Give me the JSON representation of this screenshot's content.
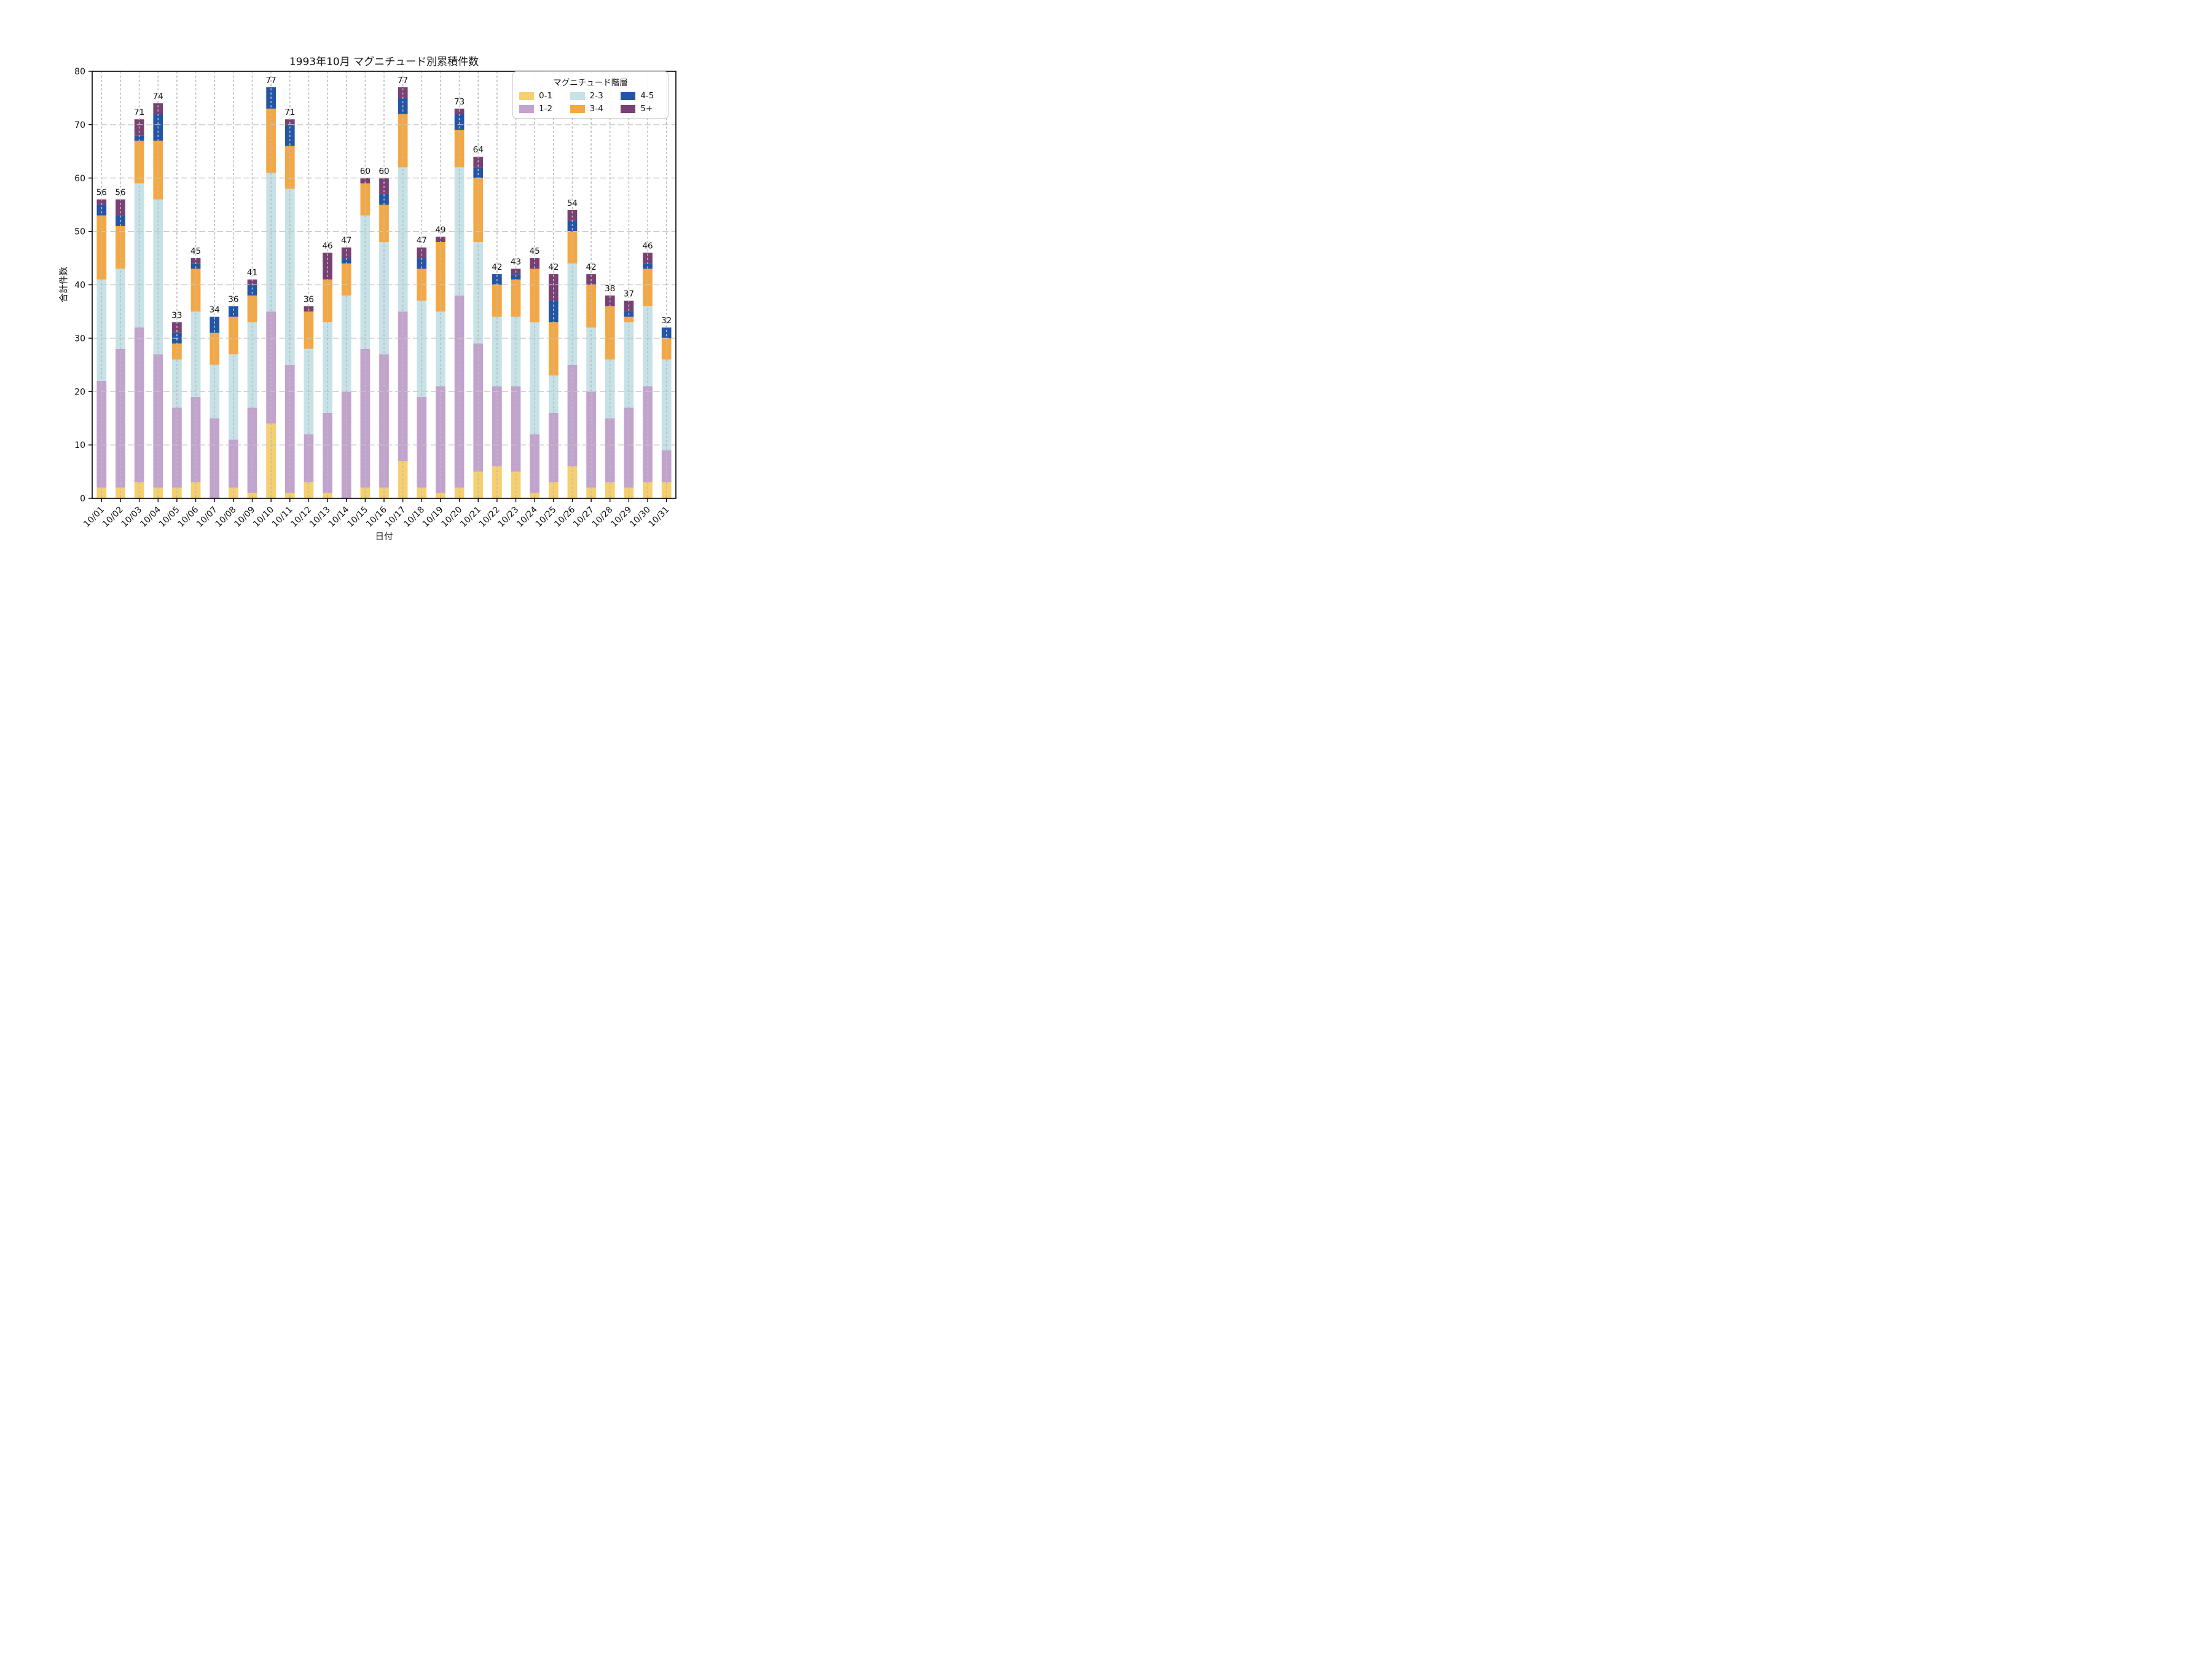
{
  "title": "1993年10月 マグニチュード別累積件数",
  "x_axis_label": "日付",
  "y_axis_label": "合計件数",
  "legend": {
    "title": "マグニチュード階層",
    "row_major_order": [
      0,
      2,
      4,
      1,
      3,
      5
    ]
  },
  "chart_data": {
    "type": "bar",
    "stacked": true,
    "title": "1993年10月 マグニチュード別累積件数",
    "xlabel": "日付",
    "ylabel": "合計件数",
    "ylim": [
      0,
      80
    ],
    "yticks": [
      0,
      10,
      20,
      30,
      40,
      50,
      60,
      70,
      80
    ],
    "grid": true,
    "legend_position": "upper right",
    "categories": [
      "10/01",
      "10/02",
      "10/03",
      "10/04",
      "10/05",
      "10/06",
      "10/07",
      "10/08",
      "10/09",
      "10/10",
      "10/11",
      "10/12",
      "10/13",
      "10/14",
      "10/15",
      "10/16",
      "10/17",
      "10/18",
      "10/19",
      "10/20",
      "10/21",
      "10/22",
      "10/23",
      "10/24",
      "10/25",
      "10/26",
      "10/27",
      "10/28",
      "10/29",
      "10/30",
      "10/31"
    ],
    "series": [
      {
        "name": "0-1",
        "color": "#f6d06f",
        "values": [
          2,
          2,
          3,
          2,
          2,
          3,
          0,
          2,
          1,
          14,
          1,
          3,
          1,
          0,
          2,
          2,
          7,
          2,
          1,
          2,
          5,
          6,
          5,
          1,
          3,
          6,
          2,
          3,
          2,
          3,
          3
        ]
      },
      {
        "name": "1-2",
        "color": "#c2a3cd",
        "values": [
          20,
          26,
          29,
          25,
          15,
          16,
          15,
          9,
          16,
          21,
          24,
          9,
          15,
          20,
          26,
          25,
          28,
          17,
          20,
          36,
          24,
          15,
          16,
          11,
          13,
          19,
          18,
          12,
          15,
          18,
          6
        ]
      },
      {
        "name": "2-3",
        "color": "#c6e2e7",
        "values": [
          19,
          15,
          27,
          29,
          9,
          16,
          10,
          16,
          16,
          26,
          33,
          16,
          17,
          18,
          25,
          21,
          27,
          18,
          14,
          24,
          19,
          13,
          13,
          21,
          7,
          19,
          12,
          11,
          16,
          15,
          17
        ]
      },
      {
        "name": "3-4",
        "color": "#f4a843",
        "values": [
          12,
          8,
          8,
          11,
          3,
          8,
          6,
          7,
          5,
          12,
          8,
          7,
          8,
          6,
          6,
          7,
          10,
          6,
          13,
          7,
          12,
          6,
          7,
          10,
          10,
          6,
          8,
          10,
          1,
          7,
          4
        ]
      },
      {
        "name": "4-5",
        "color": "#2355a4",
        "values": [
          2,
          2,
          1,
          5,
          2,
          1,
          3,
          2,
          2,
          4,
          4,
          0,
          0,
          1,
          0,
          2,
          3,
          2,
          0,
          3,
          2,
          2,
          1,
          0,
          4,
          2,
          0,
          0,
          1,
          1,
          2
        ]
      },
      {
        "name": "5+",
        "color": "#784073",
        "values": [
          1,
          3,
          3,
          2,
          2,
          1,
          0,
          0,
          1,
          0,
          1,
          1,
          5,
          2,
          1,
          3,
          2,
          2,
          1,
          1,
          2,
          0,
          1,
          2,
          5,
          2,
          2,
          2,
          2,
          2,
          0
        ]
      }
    ],
    "totals": [
      56,
      56,
      71,
      74,
      33,
      45,
      34,
      36,
      41,
      77,
      71,
      36,
      46,
      47,
      60,
      60,
      77,
      47,
      49,
      73,
      64,
      42,
      43,
      45,
      42,
      54,
      42,
      38,
      37,
      46,
      32
    ]
  },
  "style": {
    "grid_color_h": "#c6c6c6",
    "grid_color_v": "#bcbcbc",
    "spine_color": "#000000",
    "text_color": "#111111"
  }
}
